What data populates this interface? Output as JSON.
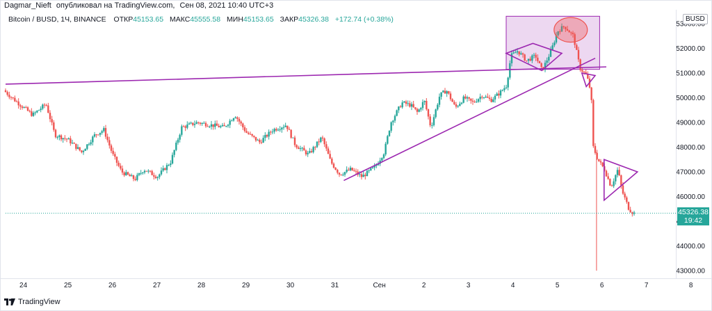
{
  "header": {
    "author": "Dagmar_Nieft",
    "published_text": "опубликовал на TradingView.com,",
    "date": "Сен 08, 2021 10:40 UTC+3"
  },
  "legend": {
    "symbol": "Bitcoin / BUSD, 1Ч, BINANCE",
    "open_label": "ОТКР",
    "open": "45153.65",
    "high_label": "МАКС",
    "high": "45555.58",
    "low_label": "МИН",
    "low": "45153.65",
    "close_label": "ЗАКР",
    "close": "45326.38",
    "change": "+172.74 (+0.38%)"
  },
  "currency": "BUSD",
  "last_price": {
    "value": "45326.38",
    "countdown": "19:42"
  },
  "footer": {
    "brand": "TradingView"
  },
  "colors": {
    "up": "#26a69a",
    "down": "#ef5350",
    "drawing": "#9c27b0",
    "box_fill": "#e1bee7",
    "circle": "#ef5350"
  },
  "chart_data": {
    "type": "candlestick",
    "title": "Bitcoin / BUSD, 1Ч, BINANCE",
    "x_ticks": [
      "24",
      "25",
      "26",
      "27",
      "28",
      "29",
      "30",
      "31",
      "Сен",
      "2",
      "3",
      "4",
      "5",
      "6",
      "7",
      "8"
    ],
    "y_ticks": [
      "43000.00",
      "44000.00",
      "45000.00",
      "46000.00",
      "47000.00",
      "48000.00",
      "49000.00",
      "50000.00",
      "51000.00",
      "52000.00",
      "53000.00"
    ],
    "y_tick_values": [
      43000,
      44000,
      45000,
      46000,
      47000,
      48000,
      49000,
      50000,
      51000,
      52000,
      53000
    ],
    "ylim": [
      42700,
      53400
    ],
    "x_range_days": [
      23.55,
      32.7
    ],
    "last_value": 45326.38,
    "price_path": [
      [
        23.55,
        50300
      ],
      [
        23.8,
        49900
      ],
      [
        24.2,
        49300
      ],
      [
        24.5,
        49750
      ],
      [
        24.7,
        48500
      ],
      [
        25.0,
        48300
      ],
      [
        25.3,
        47800
      ],
      [
        25.6,
        48500
      ],
      [
        25.8,
        48700
      ],
      [
        26.0,
        47700
      ],
      [
        26.2,
        47000
      ],
      [
        26.5,
        46700
      ],
      [
        26.7,
        47100
      ],
      [
        27.0,
        46800
      ],
      [
        27.3,
        47400
      ],
      [
        27.55,
        48800
      ],
      [
        27.9,
        49000
      ],
      [
        28.2,
        48900
      ],
      [
        28.5,
        48800
      ],
      [
        28.75,
        49300
      ],
      [
        29.0,
        48600
      ],
      [
        29.3,
        48200
      ],
      [
        29.6,
        48700
      ],
      [
        29.9,
        48900
      ],
      [
        30.1,
        48100
      ],
      [
        30.4,
        47700
      ],
      [
        30.7,
        48400
      ],
      [
        30.9,
        47400
      ],
      [
        31.1,
        46900
      ],
      [
        31.35,
        47100
      ],
      [
        31.6,
        46800
      ],
      [
        31.9,
        47200
      ],
      [
        32.1,
        47800
      ],
      [
        32.25,
        49000
      ],
      [
        32.5,
        49800
      ],
      [
        32.7,
        49700
      ],
      [
        32.85,
        49400
      ],
      [
        33.0,
        49900
      ],
      [
        33.15,
        48800
      ],
      [
        33.35,
        50100
      ],
      [
        33.5,
        50300
      ],
      [
        33.7,
        49600
      ],
      [
        33.9,
        50000
      ],
      [
        34.1,
        49800
      ],
      [
        34.3,
        50100
      ],
      [
        34.5,
        49900
      ],
      [
        34.7,
        50200
      ],
      [
        34.85,
        50500
      ],
      [
        34.95,
        51700
      ],
      [
        35.1,
        51900
      ],
      [
        35.3,
        51500
      ],
      [
        35.5,
        51700
      ],
      [
        35.65,
        51100
      ],
      [
        35.85,
        51900
      ],
      [
        36.0,
        52700
      ],
      [
        36.15,
        52900
      ],
      [
        36.35,
        52500
      ],
      [
        36.5,
        51200
      ],
      [
        36.65,
        50900
      ],
      [
        36.75,
        50200
      ],
      [
        36.8,
        48000
      ],
      [
        36.9,
        47500
      ],
      [
        37.05,
        47100
      ],
      [
        37.2,
        46400
      ],
      [
        37.35,
        47100
      ],
      [
        37.45,
        46200
      ],
      [
        37.6,
        45500
      ],
      [
        37.7,
        45326
      ]
    ],
    "notable_low": 43000,
    "annotations": [
      {
        "type": "trendline",
        "points": [
          [
            23.55,
            50550
          ],
          [
            37.05,
            51250
          ]
        ]
      },
      {
        "type": "trendline",
        "points": [
          [
            31.15,
            46650
          ],
          [
            36.8,
            51600
          ]
        ]
      },
      {
        "type": "triangle",
        "points": [
          [
            34.8,
            51800
          ],
          [
            35.4,
            52200
          ],
          [
            36.05,
            51800
          ],
          [
            35.6,
            51100
          ]
        ]
      },
      {
        "type": "triangle",
        "points": [
          [
            36.5,
            51000
          ],
          [
            36.6,
            50450
          ],
          [
            36.8,
            50900
          ]
        ]
      },
      {
        "type": "triangle",
        "points": [
          [
            37.0,
            47500
          ],
          [
            37.75,
            47000
          ],
          [
            37.0,
            45850
          ]
        ]
      },
      {
        "type": "rectangle",
        "points": [
          [
            34.8,
            53300
          ],
          [
            36.9,
            51150
          ]
        ]
      },
      {
        "type": "circle",
        "center": [
          36.25,
          52750
        ],
        "radius_value": 500
      }
    ]
  }
}
